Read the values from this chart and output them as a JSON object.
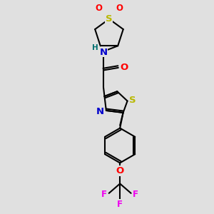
{
  "background_color": "#e0e0e0",
  "fig_width": 3.0,
  "fig_height": 3.0,
  "dpi": 100,
  "bond_color": "#000000",
  "bond_lw": 1.5,
  "S_color": "#b8b800",
  "O_color": "#ff0000",
  "N_color": "#0000cc",
  "H_color": "#007070",
  "F_color": "#ee00ee",
  "font_size": 8.5,
  "font_size_small": 7.5,
  "xlim": [
    0,
    10
  ],
  "ylim": [
    0,
    10
  ]
}
